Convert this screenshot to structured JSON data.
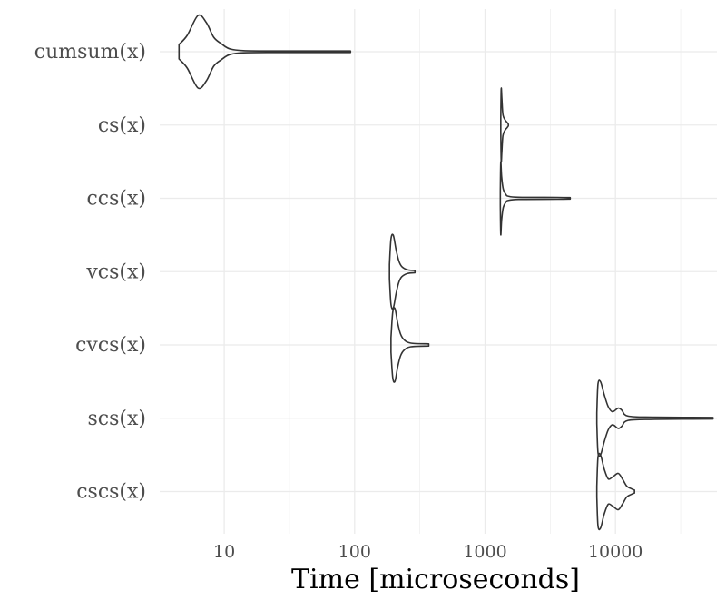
{
  "chart_data": {
    "type": "violin",
    "title": "",
    "xlabel": "Time [microseconds]",
    "ylabel": "",
    "x_scale": "log10",
    "xlim": [
      3.2,
      60000
    ],
    "x_ticks": [
      10,
      100,
      1000,
      10000
    ],
    "x_tick_labels": [
      "10",
      "100",
      "1000",
      "10000"
    ],
    "grid": true,
    "legend": "none",
    "categories": [
      "cumsum(x)",
      "cs(x)",
      "ccs(x)",
      "vcs(x)",
      "cvcs(x)",
      "scs(x)",
      "cscs(x)"
    ],
    "series": [
      {
        "category": "cumsum(x)",
        "min": 4.5,
        "max": 93,
        "profile": [
          [
            4.5,
            0.2
          ],
          [
            5.2,
            0.45
          ],
          [
            6.3,
            1.0
          ],
          [
            7.3,
            0.8
          ],
          [
            8.3,
            0.4
          ],
          [
            9.5,
            0.22
          ],
          [
            11,
            0.08
          ],
          [
            14,
            0.03
          ],
          [
            25,
            0.02
          ],
          [
            93,
            0.02
          ]
        ]
      },
      {
        "category": "cs(x)",
        "min": 1320,
        "max": 1510,
        "profile": [
          [
            1320,
            0.2
          ],
          [
            1330,
            1.0
          ],
          [
            1345,
            0.75
          ],
          [
            1370,
            0.3
          ],
          [
            1420,
            0.15
          ],
          [
            1470,
            0.08
          ],
          [
            1500,
            0.04
          ],
          [
            1510,
            0.02
          ]
        ]
      },
      {
        "category": "ccs(x)",
        "min": 1310,
        "max": 4500,
        "profile": [
          [
            1310,
            0.2
          ],
          [
            1320,
            1.0
          ],
          [
            1340,
            0.6
          ],
          [
            1380,
            0.25
          ],
          [
            1450,
            0.1
          ],
          [
            1500,
            0.06
          ],
          [
            1800,
            0.03
          ],
          [
            3600,
            0.025
          ],
          [
            4500,
            0.02
          ]
        ]
      },
      {
        "category": "vcs(x)",
        "min": 185,
        "max": 290,
        "profile": [
          [
            185,
            0.2
          ],
          [
            190,
            0.9
          ],
          [
            198,
            1.0
          ],
          [
            208,
            0.6
          ],
          [
            218,
            0.3
          ],
          [
            230,
            0.14
          ],
          [
            255,
            0.05
          ],
          [
            290,
            0.03
          ]
        ]
      },
      {
        "category": "cvcs(x)",
        "min": 190,
        "max": 370,
        "profile": [
          [
            190,
            0.2
          ],
          [
            196,
            0.9
          ],
          [
            204,
            1.0
          ],
          [
            214,
            0.6
          ],
          [
            225,
            0.3
          ],
          [
            240,
            0.14
          ],
          [
            270,
            0.05
          ],
          [
            370,
            0.03
          ]
        ]
      },
      {
        "category": "scs(x)",
        "min": 7200,
        "max": 56000,
        "profile": [
          [
            7200,
            0.15
          ],
          [
            7350,
            0.95
          ],
          [
            7700,
            1.0
          ],
          [
            8200,
            0.65
          ],
          [
            8800,
            0.32
          ],
          [
            9500,
            0.18
          ],
          [
            10500,
            0.28
          ],
          [
            11200,
            0.22
          ],
          [
            12500,
            0.06
          ],
          [
            20000,
            0.03
          ],
          [
            56000,
            0.02
          ]
        ]
      },
      {
        "category": "cscs(x)",
        "min": 7200,
        "max": 14000,
        "profile": [
          [
            7200,
            0.15
          ],
          [
            7350,
            0.95
          ],
          [
            7700,
            1.0
          ],
          [
            8200,
            0.62
          ],
          [
            8800,
            0.35
          ],
          [
            9500,
            0.4
          ],
          [
            10500,
            0.5
          ],
          [
            11300,
            0.35
          ],
          [
            12200,
            0.15
          ],
          [
            13200,
            0.08
          ],
          [
            14000,
            0.04
          ]
        ]
      }
    ],
    "colors": {
      "outline": "#333333",
      "grid": "#ebebeb",
      "tick_text": "#4d4d4d",
      "title_text": "#000000"
    }
  }
}
